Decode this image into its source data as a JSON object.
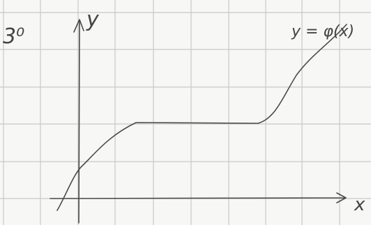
{
  "item_number": "3⁰",
  "axes": {
    "y_label": "y",
    "x_label": "x"
  },
  "curve_label": "y = φ(x)"
}
